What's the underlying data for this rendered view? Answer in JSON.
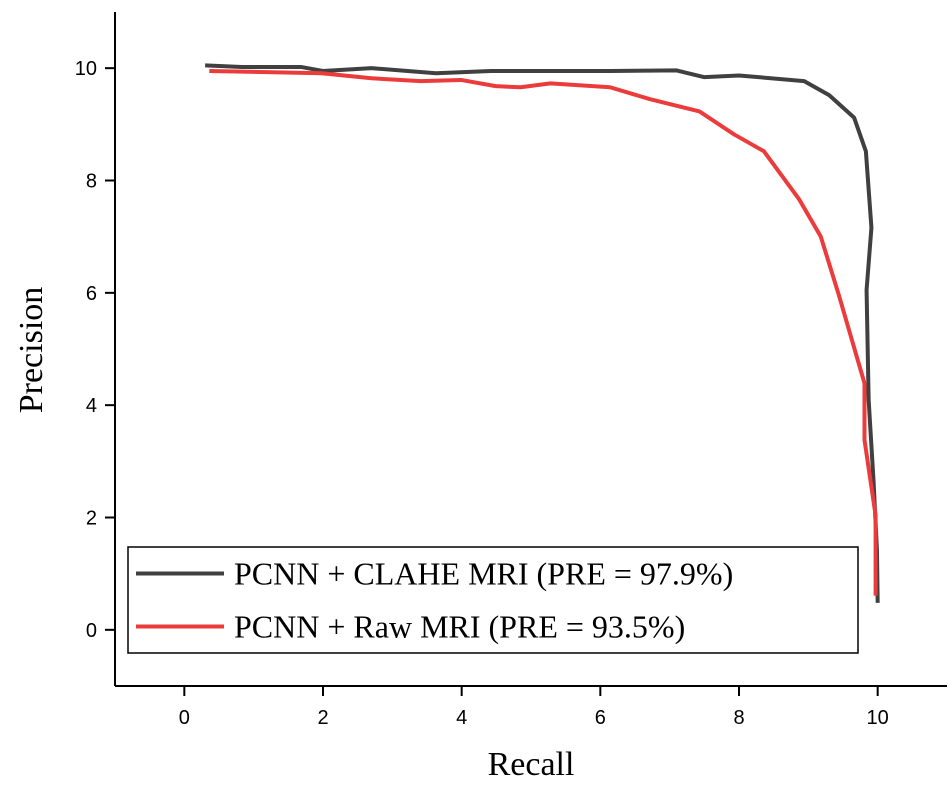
{
  "chart_data": {
    "type": "line",
    "x_label": "Recall",
    "y_label": "Precision",
    "xlim": [
      -1,
      11
    ],
    "ylim": [
      -1,
      11
    ],
    "xticks": [
      0,
      2,
      4,
      6,
      8,
      10
    ],
    "yticks": [
      0,
      2,
      4,
      6,
      8,
      10
    ],
    "legend": "lower left",
    "series": [
      {
        "name": "PCNN + CLAHE MRI (PRE = 97.9%)",
        "color": "#404040",
        "x": [
          0.3,
          0.83,
          1.69,
          2.0,
          2.7,
          3.63,
          4.42,
          6.14,
          7.1,
          7.5,
          8.0,
          8.94,
          9.3,
          9.66,
          9.83,
          9.91,
          9.84,
          9.87,
          9.94,
          9.99,
          10.0
        ],
        "values": [
          10.05,
          10.02,
          10.02,
          9.95,
          10.0,
          9.91,
          9.95,
          9.95,
          9.96,
          9.84,
          9.87,
          9.77,
          9.52,
          9.12,
          8.52,
          7.16,
          6.05,
          4.09,
          2.66,
          1.41,
          0.48
        ]
      },
      {
        "name": "PCNN + Raw MRI (PRE = 93.5%)",
        "color": "#ec3b3b",
        "x": [
          0.36,
          1.98,
          2.7,
          3.41,
          3.99,
          4.49,
          4.85,
          5.28,
          6.14,
          6.71,
          7.43,
          7.93,
          8.36,
          8.87,
          9.18,
          9.44,
          9.81,
          9.81,
          9.97,
          9.97
        ],
        "values": [
          9.95,
          9.91,
          9.82,
          9.77,
          9.79,
          9.68,
          9.66,
          9.73,
          9.66,
          9.45,
          9.23,
          8.82,
          8.52,
          7.66,
          7.0,
          5.96,
          4.39,
          3.38,
          2.04,
          0.61
        ]
      }
    ]
  }
}
